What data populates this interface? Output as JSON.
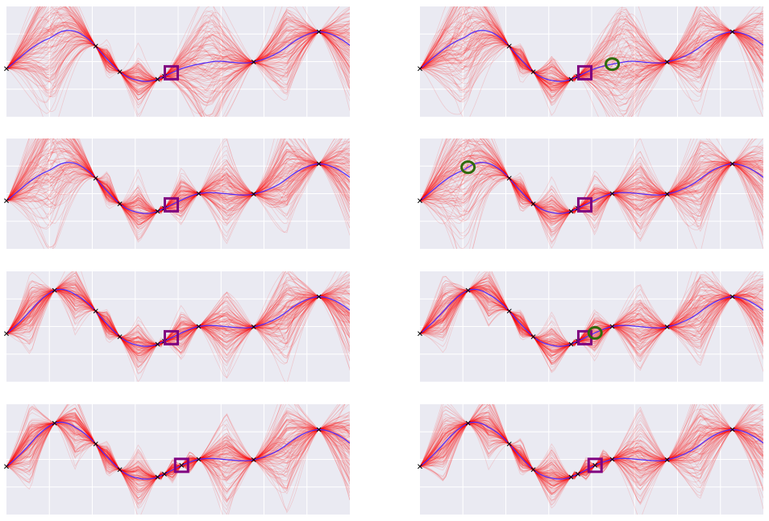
{
  "chart_data": {
    "type": "line",
    "title": "",
    "xlabel": "",
    "ylabel": "",
    "xlim": [
      0,
      1
    ],
    "ylim": [
      -1.6,
      1.6
    ],
    "grid": true,
    "legend": "none",
    "colors": {
      "background": "#eaeaf2",
      "grid": "#ffffff",
      "samples": "#ff0000",
      "mean": "#4d2cff",
      "best_marker": "#800080",
      "next_query": "#2e6b0a",
      "observation": "#000000"
    },
    "sample_count": 130,
    "panels": [
      {
        "obs": [
          0.0,
          0.26,
          0.33,
          0.44,
          0.46,
          0.72,
          0.91
        ],
        "best_x": 0.48,
        "next_x": null
      },
      {
        "obs": [
          0.0,
          0.26,
          0.33,
          0.44,
          0.46,
          0.72,
          0.91
        ],
        "best_x": 0.48,
        "next_x": 0.56
      },
      {
        "obs": [
          0.0,
          0.26,
          0.33,
          0.44,
          0.46,
          0.56,
          0.72,
          0.91
        ],
        "best_x": 0.48,
        "next_x": null
      },
      {
        "obs": [
          0.0,
          0.26,
          0.33,
          0.44,
          0.46,
          0.56,
          0.72,
          0.91
        ],
        "best_x": 0.48,
        "next_x": 0.14
      },
      {
        "obs": [
          0.0,
          0.14,
          0.26,
          0.33,
          0.44,
          0.46,
          0.56,
          0.72,
          0.91
        ],
        "best_x": 0.48,
        "next_x": null
      },
      {
        "obs": [
          0.0,
          0.14,
          0.26,
          0.33,
          0.44,
          0.46,
          0.56,
          0.72,
          0.91
        ],
        "best_x": 0.48,
        "next_x": 0.51
      },
      {
        "obs": [
          0.0,
          0.14,
          0.26,
          0.33,
          0.44,
          0.46,
          0.51,
          0.56,
          0.72,
          0.91
        ],
        "best_x": 0.51,
        "next_x": null
      },
      {
        "obs": [
          0.0,
          0.14,
          0.26,
          0.33,
          0.44,
          0.46,
          0.51,
          0.56,
          0.72,
          0.91
        ],
        "best_x": 0.51,
        "next_x": null
      }
    ]
  }
}
